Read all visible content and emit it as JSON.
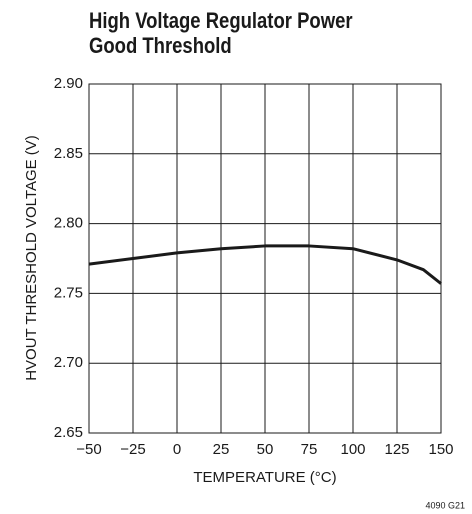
{
  "chart_data": {
    "type": "line",
    "title": "High Voltage Regulator Power Good Threshold",
    "xlabel": "TEMPERATURE (°C)",
    "ylabel": "HVOUT THRESHOLD VOLTAGE (V)",
    "note": "4090 G21",
    "x": [
      -50,
      -25,
      0,
      25,
      50,
      75,
      100,
      125,
      140,
      150
    ],
    "series": [
      {
        "color": "#1a1a1a",
        "values": [
          2.771,
          2.775,
          2.779,
          2.782,
          2.784,
          2.784,
          2.782,
          2.774,
          2.767,
          2.757
        ]
      }
    ],
    "xlim": [
      -50,
      150
    ],
    "xticks": [
      {
        "value": -50,
        "label": "−50"
      },
      {
        "value": -25,
        "label": "−25"
      },
      0,
      25,
      50,
      75,
      100,
      125,
      150
    ],
    "ylim": [
      2.65,
      2.9
    ],
    "yticks": [
      2.65,
      {
        "value": 2.7,
        "label": "2.70"
      },
      2.75,
      {
        "value": 2.8,
        "label": "2.80"
      },
      2.85,
      {
        "value": 2.9,
        "label": "2.90"
      }
    ],
    "grid": true
  }
}
